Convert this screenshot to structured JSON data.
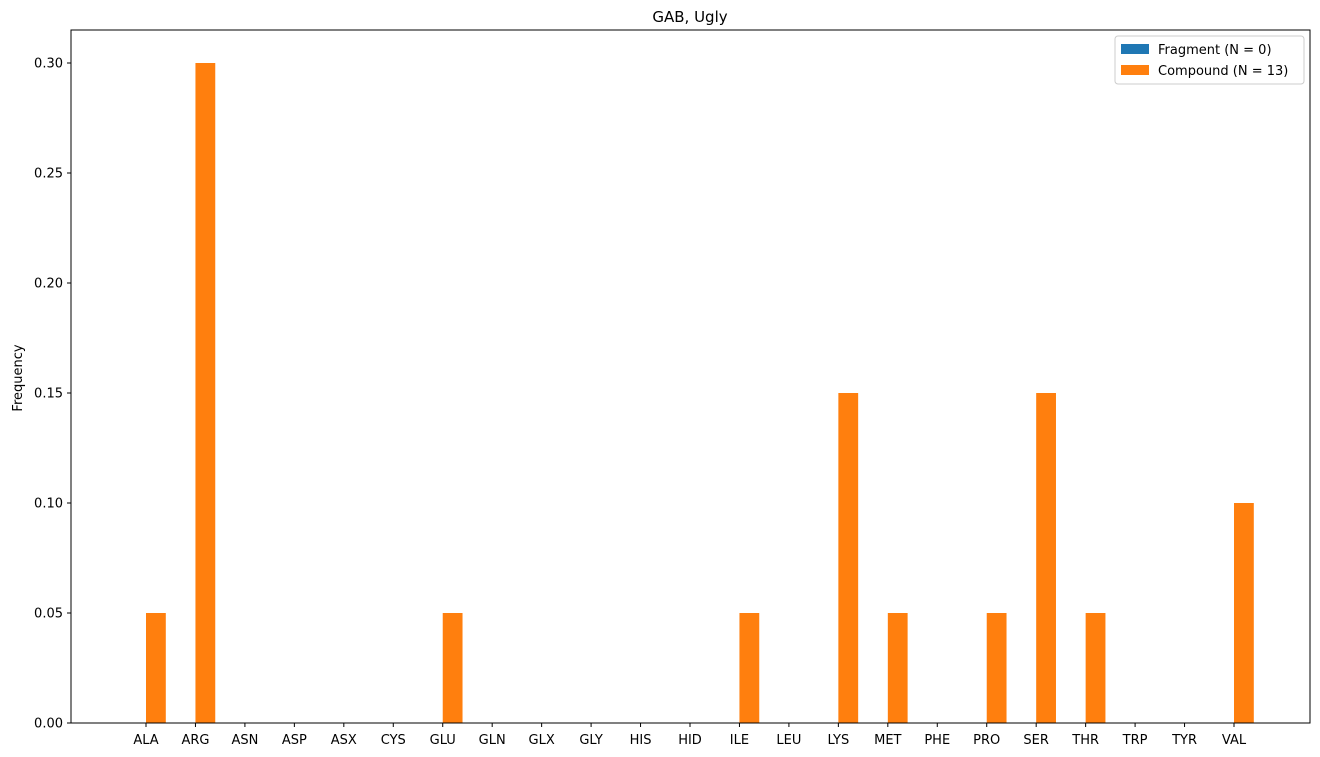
{
  "chart_data": {
    "type": "bar",
    "title": "GAB, Ugly",
    "xlabel": "",
    "ylabel": "Frequency",
    "ylim": [
      0,
      0.315
    ],
    "yticks": [
      "0.00",
      "0.05",
      "0.10",
      "0.15",
      "0.20",
      "0.25",
      "0.30"
    ],
    "grid": false,
    "legend_position": "top-right",
    "categories": [
      "ALA",
      "ARG",
      "ASN",
      "ASP",
      "ASX",
      "CYS",
      "GLU",
      "GLN",
      "GLX",
      "GLY",
      "HIS",
      "HID",
      "ILE",
      "LEU",
      "LYS",
      "MET",
      "PHE",
      "PRO",
      "SER",
      "THR",
      "TRP",
      "TYR",
      "VAL"
    ],
    "series": [
      {
        "name": "Fragment (N = 0)",
        "color": "#1f77b4",
        "values": [
          0,
          0,
          0,
          0,
          0,
          0,
          0,
          0,
          0,
          0,
          0,
          0,
          0,
          0,
          0,
          0,
          0,
          0,
          0,
          0,
          0,
          0,
          0
        ]
      },
      {
        "name": "Compound (N = 13)",
        "color": "#ff7f0e",
        "values": [
          0.05,
          0.3,
          0,
          0,
          0,
          0,
          0.05,
          0,
          0,
          0,
          0,
          0,
          0.05,
          0,
          0.15,
          0.05,
          0,
          0.05,
          0.15,
          0.05,
          0,
          0,
          0.1
        ]
      }
    ]
  }
}
